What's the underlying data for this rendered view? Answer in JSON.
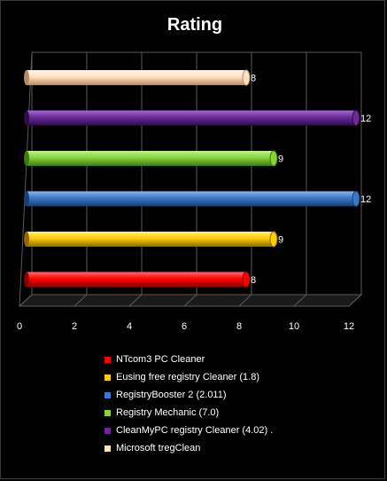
{
  "chart_data": {
    "type": "bar",
    "orientation": "horizontal",
    "title": "Rating",
    "xlabel": "",
    "ylabel": "",
    "xlim": [
      0,
      12
    ],
    "xticks": [
      "0",
      "2",
      "4",
      "6",
      "8",
      "10",
      "12"
    ],
    "grid": true,
    "legend_position": "bottom",
    "series": [
      {
        "name": "NTcom3 PC Cleaner",
        "value": 8,
        "label": "8",
        "color": "#ff0000",
        "color_light": "#ff6a6a",
        "color_dark": "#8a0000"
      },
      {
        "name": "Eusing free registry Cleaner (1.8)",
        "value": 9,
        "label": "9",
        "color": "#ffcc00",
        "color_light": "#fff07a",
        "color_dark": "#8c6a00"
      },
      {
        "name": "RegistryBooster 2 (2.011)",
        "value": 12,
        "label": "12",
        "color": "#3a78c8",
        "color_light": "#8ab4ec",
        "color_dark": "#1c3e70"
      },
      {
        "name": "Registry Mechanic (7.0)",
        "value": 9,
        "label": "9",
        "color": "#86d43a",
        "color_light": "#c4f08c",
        "color_dark": "#3e7a10"
      },
      {
        "name": "CleanMyPC registry Cleaner (4.02) .",
        "value": 12,
        "label": "12",
        "color": "#6a2a9a",
        "color_light": "#a66ad6",
        "color_dark": "#2e0c4a"
      },
      {
        "name": "Microsoft tregClean",
        "value": 8,
        "label": "8",
        "color": "#ffe0c0",
        "color_light": "#fff6ea",
        "color_dark": "#b88a62"
      }
    ]
  }
}
